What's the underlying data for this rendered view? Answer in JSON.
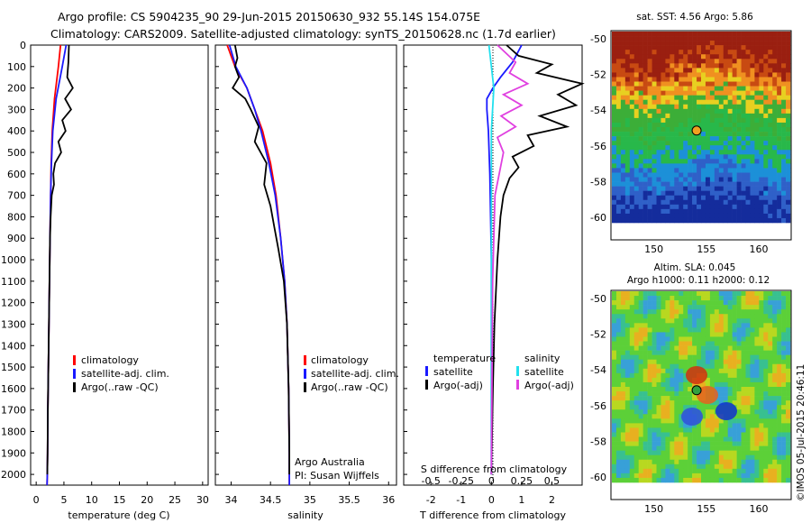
{
  "header": {
    "line1": "Argo profile: CS 5904235_90 29-Jun-2015 20150630_932 55.14S 154.075E",
    "line2": "Climatology: CARS2009. Satellite-adjusted climatology: synTS_20150628.nc (1.7d earlier)"
  },
  "credit": "©IMOS 05-Jul-2015 20:46:11",
  "colors": {
    "climatology": "#ff0000",
    "satellite": "#1a1aff",
    "argo": "#000000",
    "sat_s": "#22e0ee",
    "argo_s": "#e040e0"
  },
  "y_ticks": [
    "0",
    "100",
    "200",
    "300",
    "400",
    "500",
    "600",
    "700",
    "800",
    "900",
    "1000",
    "1100",
    "1200",
    "1300",
    "1400",
    "1500",
    "1600",
    "1700",
    "1800",
    "1900",
    "2000"
  ],
  "temperature_panel": {
    "xlabel": "temperature (deg C)",
    "x_ticks": [
      "0",
      "5",
      "10",
      "15",
      "20",
      "25",
      "30"
    ],
    "legend": [
      "climatology",
      "satellite-adj. clim.",
      "Argo(..raw -QC)"
    ]
  },
  "salinity_panel": {
    "xlabel": "salinity",
    "x_ticks": [
      "34",
      "34.5",
      "35",
      "35.5",
      "36"
    ],
    "legend": [
      "climatology",
      "satellite-adj. clim.",
      "Argo(..raw -QC)"
    ],
    "notes": [
      "Argo Australia",
      "PI: Susan Wijffels"
    ]
  },
  "difference_panel": {
    "xlabel": "T difference from climatology",
    "x_ticks": [
      "-2",
      "-1",
      "0",
      "1",
      "2"
    ],
    "top_label": "S difference from climatology",
    "top_ticks": [
      "-0.5",
      "-0.25",
      "0",
      "0.25",
      "0.5"
    ],
    "legend_t_title": "temperature",
    "legend_t": [
      "satellite",
      "Argo(-adj)"
    ],
    "legend_s_title": "salinity",
    "legend_s": [
      "satellite",
      "Argo(-adj)"
    ]
  },
  "map_sst": {
    "title": "sat. SST: 4.56 Argo: 5.86",
    "y_ticks": [
      "-50",
      "-52",
      "-54",
      "-56",
      "-58",
      "-60"
    ],
    "x_ticks": [
      "150",
      "155",
      "160"
    ]
  },
  "map_sla": {
    "title1": "Altim. SLA: 0.045",
    "title2": "Argo h1000: 0.11 h2000: 0.12",
    "y_ticks": [
      "-50",
      "-52",
      "-54",
      "-56",
      "-58",
      "-60"
    ],
    "x_ticks": [
      "150",
      "155",
      "160"
    ]
  },
  "chart_data": [
    {
      "type": "line",
      "xlabel": "temperature (deg C)",
      "xlim": [
        -1,
        31
      ],
      "ylim": [
        2050,
        0
      ],
      "series": [
        {
          "name": "climatology",
          "x": [
            4.4,
            4.0,
            3.3,
            2.9,
            2.7,
            2.6,
            2.5,
            2.4,
            2.3,
            2.2,
            2.1,
            2.05,
            2.0,
            1.95
          ],
          "y": [
            0,
            100,
            250,
            400,
            550,
            700,
            900,
            1100,
            1300,
            1500,
            1700,
            1900,
            2000,
            2050
          ]
        },
        {
          "name": "satellite-adj. clim.",
          "x": [
            5.4,
            4.7,
            3.6,
            3.0,
            2.75,
            2.6,
            2.5,
            2.4,
            2.3,
            2.2,
            2.1,
            2.05,
            2.0,
            1.95
          ],
          "y": [
            0,
            100,
            250,
            400,
            550,
            700,
            900,
            1100,
            1300,
            1500,
            1700,
            1900,
            2000,
            2050
          ]
        },
        {
          "name": "Argo(..raw -QC)",
          "x": [
            5.9,
            5.8,
            5.6,
            6.6,
            5.2,
            6.3,
            4.7,
            5.3,
            4.0,
            4.5,
            3.4,
            3.1,
            3.2,
            2.8,
            2.6,
            2.5,
            2.4,
            2.3,
            2.2,
            2.1,
            2.05,
            2.0
          ],
          "y": [
            0,
            80,
            150,
            200,
            250,
            300,
            350,
            400,
            450,
            500,
            550,
            600,
            650,
            700,
            800,
            900,
            1100,
            1300,
            1500,
            1700,
            1900,
            2000
          ]
        }
      ]
    },
    {
      "type": "line",
      "xlabel": "salinity",
      "xlim": [
        33.8,
        36.1
      ],
      "ylim": [
        2050,
        0
      ],
      "series": [
        {
          "name": "climatology",
          "x": [
            33.95,
            34.05,
            34.2,
            34.3,
            34.4,
            34.5,
            34.57,
            34.63,
            34.68,
            34.71,
            34.73,
            34.74,
            34.74
          ],
          "y": [
            0,
            100,
            200,
            300,
            400,
            550,
            700,
            900,
            1100,
            1300,
            1600,
            1900,
            2050
          ]
        },
        {
          "name": "satellite-adj. clim.",
          "x": [
            33.98,
            34.06,
            34.2,
            34.3,
            34.38,
            34.48,
            34.56,
            34.63,
            34.68,
            34.71,
            34.73,
            34.74,
            34.74
          ],
          "y": [
            0,
            100,
            200,
            300,
            400,
            550,
            700,
            900,
            1100,
            1300,
            1600,
            1900,
            2050
          ]
        },
        {
          "name": "Argo(..raw -QC)",
          "x": [
            34.05,
            34.08,
            34.05,
            34.1,
            34.02,
            34.18,
            34.25,
            34.35,
            34.3,
            34.45,
            34.42,
            34.5,
            34.55,
            34.6,
            34.67,
            34.71,
            34.73,
            34.74,
            34.74
          ],
          "y": [
            0,
            60,
            100,
            150,
            200,
            250,
            300,
            380,
            450,
            550,
            650,
            750,
            850,
            950,
            1100,
            1300,
            1600,
            1900,
            2000
          ]
        }
      ]
    },
    {
      "type": "line",
      "xlabel": "T difference from climatology",
      "xlim": [
        -2.9,
        3.0
      ],
      "x2label": "S difference from climatology",
      "x2lim": [
        -0.725,
        0.75
      ],
      "ylim": [
        2050,
        0
      ],
      "series": [
        {
          "name": "satellite (temperature)",
          "axis": "T",
          "x": [
            1.0,
            0.7,
            0.3,
            0.05,
            -0.15,
            -0.15,
            -0.1,
            -0.05,
            0.0,
            0.0,
            0.0
          ],
          "y": [
            0,
            80,
            150,
            200,
            250,
            300,
            400,
            600,
            1000,
            1500,
            2000
          ]
        },
        {
          "name": "Argo(-adj) (temperature)",
          "axis": "T",
          "x": [
            0.5,
            0.9,
            2.0,
            1.5,
            3.0,
            2.2,
            2.8,
            1.6,
            2.5,
            1.2,
            1.4,
            0.7,
            0.9,
            0.6,
            0.4,
            0.3,
            0.2,
            0.1,
            0.05,
            0.0
          ],
          "y": [
            0,
            50,
            90,
            130,
            180,
            230,
            280,
            330,
            380,
            420,
            470,
            520,
            570,
            620,
            700,
            800,
            1000,
            1300,
            1600,
            2000
          ]
        },
        {
          "name": "satellite (salinity)",
          "axis": "S",
          "x": [
            -0.02,
            0.0,
            0.02,
            0.0,
            0.0,
            0.0,
            0.0
          ],
          "y": [
            0,
            100,
            200,
            400,
            800,
            1400,
            2000
          ]
        },
        {
          "name": "Argo(-adj) (salinity)",
          "axis": "S",
          "x": [
            0.05,
            0.2,
            0.15,
            0.3,
            0.1,
            0.25,
            0.08,
            0.2,
            0.05,
            0.1,
            0.03,
            0.01,
            0.0
          ],
          "y": [
            0,
            80,
            130,
            180,
            230,
            280,
            330,
            380,
            430,
            500,
            700,
            1100,
            2000
          ]
        }
      ]
    },
    {
      "type": "heatmap",
      "title": "sat. SST: 4.56 Argo: 5.86",
      "xlim": [
        146,
        163
      ],
      "ylim": [
        -60.3,
        -49.6
      ],
      "marker": {
        "lon": 154.075,
        "lat": -55.14
      }
    },
    {
      "type": "heatmap",
      "title": "Altim. SLA: 0.045",
      "xlim": [
        146,
        163
      ],
      "ylim": [
        -60.3,
        -49.6
      ],
      "marker": {
        "lon": 154.075,
        "lat": -55.14
      }
    }
  ]
}
